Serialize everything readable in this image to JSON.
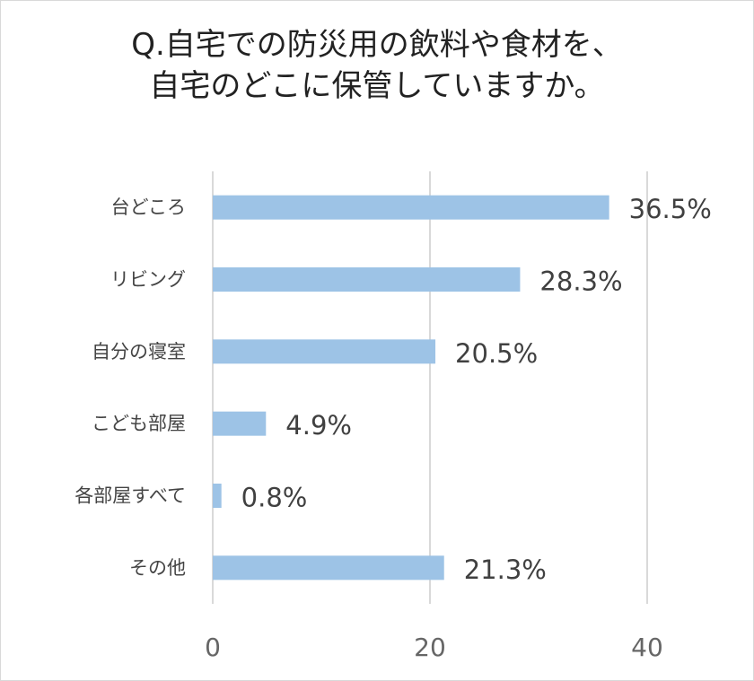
{
  "chart_data": {
    "type": "bar",
    "orientation": "horizontal",
    "title": [
      "Q.自宅での防災用の飲料や食材を、",
      "自宅のどこに保管していますか。"
    ],
    "categories": [
      "台どころ",
      "リビング",
      "自分の寝室",
      "こども部屋",
      "各部屋すべて",
      "その他"
    ],
    "values": [
      36.5,
      28.3,
      20.5,
      4.9,
      0.8,
      21.3
    ],
    "data_labels": [
      "36.5%",
      "28.3%",
      "20.5%",
      "4.9%",
      "0.8%",
      "21.3%"
    ],
    "xlim": [
      0,
      40
    ],
    "xticks": [
      "0",
      "20",
      "40"
    ],
    "grid": true,
    "bar_color": "#9dc3e6",
    "grid_color": "#d9d9d9"
  }
}
